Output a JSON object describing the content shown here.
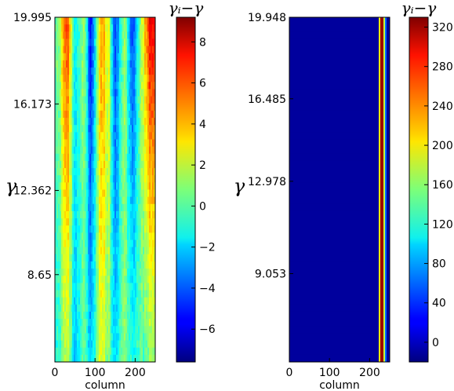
{
  "chart_data": [
    {
      "type": "heatmap",
      "title": "",
      "xlabel": "column",
      "ylabel": "γ",
      "colorbar_label": "γ_i−γ",
      "colorbar_label_text": "γᵢ−γ",
      "xlim": [
        0,
        250
      ],
      "ylim": [
        4.8,
        19.995
      ],
      "x_ticks": [
        0,
        100,
        200
      ],
      "x_tick_labels": [
        "0",
        "100",
        "200"
      ],
      "y_ticks": [
        19.995,
        16.173,
        12.362,
        8.65
      ],
      "y_tick_labels": [
        "19.995",
        "16.173",
        "12.362",
        "8.65"
      ],
      "colorbar_range": [
        -7.6,
        9.2
      ],
      "colorbar_ticks": [
        8,
        6,
        4,
        2,
        0,
        -2,
        -4,
        -6
      ],
      "colorbar_tick_labels": [
        "8",
        "6",
        "4",
        "2",
        "0",
        "−2",
        "−4",
        "−6"
      ],
      "colormap": "jet",
      "columns": [
        {
          "x": 10,
          "v_top": 0.7,
          "v_bottom": -0.9
        },
        {
          "x": 30,
          "v_top": 6.5,
          "v_bottom": 2.0
        },
        {
          "x": 50,
          "v_top": -1.5,
          "v_bottom": -2.2
        },
        {
          "x": 72,
          "v_top": 1.5,
          "v_bottom": 0.5
        },
        {
          "x": 90,
          "v_top": -6.0,
          "v_bottom": -2.6
        },
        {
          "x": 115,
          "v_top": 5.0,
          "v_bottom": 2.8
        },
        {
          "x": 135,
          "v_top": 2.2,
          "v_bottom": 0.8
        },
        {
          "x": 150,
          "v_top": -4.6,
          "v_bottom": -2.0
        },
        {
          "x": 175,
          "v_top": 1.3,
          "v_bottom": 1.0
        },
        {
          "x": 192,
          "v_top": -5.0,
          "v_bottom": -1.0
        },
        {
          "x": 212,
          "v_top": 0.5,
          "v_bottom": -0.2
        },
        {
          "x": 235,
          "v_top": 7.0,
          "v_bottom": 0.7
        }
      ]
    },
    {
      "type": "heatmap",
      "title": "",
      "xlabel": "column",
      "ylabel": "γ",
      "colorbar_label": "γ_i−γ",
      "colorbar_label_text": "γᵢ−γ",
      "xlim": [
        0,
        250
      ],
      "ylim": [
        5.3,
        19.948
      ],
      "x_ticks": [
        0,
        100,
        200
      ],
      "x_tick_labels": [
        "0",
        "100",
        "200"
      ],
      "y_ticks": [
        19.948,
        16.485,
        12.978,
        9.053
      ],
      "y_tick_labels": [
        "19.948",
        "16.485",
        "12.978",
        "9.053"
      ],
      "colorbar_range": [
        -20,
        330
      ],
      "colorbar_ticks": [
        320,
        280,
        240,
        200,
        160,
        120,
        80,
        40,
        0
      ],
      "colorbar_tick_labels": [
        "320",
        "280",
        "240",
        "200",
        "160",
        "120",
        "80",
        "40",
        "0"
      ],
      "colormap": "jet",
      "background_value": -10,
      "stripes": [
        {
          "x_start": 223,
          "x_end": 228,
          "value": 200
        },
        {
          "x_start": 228,
          "x_end": 234,
          "value": 320
        },
        {
          "x_start": 234,
          "x_end": 238,
          "value": 180
        },
        {
          "x_start": 238,
          "x_end": 242,
          "value": 60
        }
      ]
    }
  ]
}
